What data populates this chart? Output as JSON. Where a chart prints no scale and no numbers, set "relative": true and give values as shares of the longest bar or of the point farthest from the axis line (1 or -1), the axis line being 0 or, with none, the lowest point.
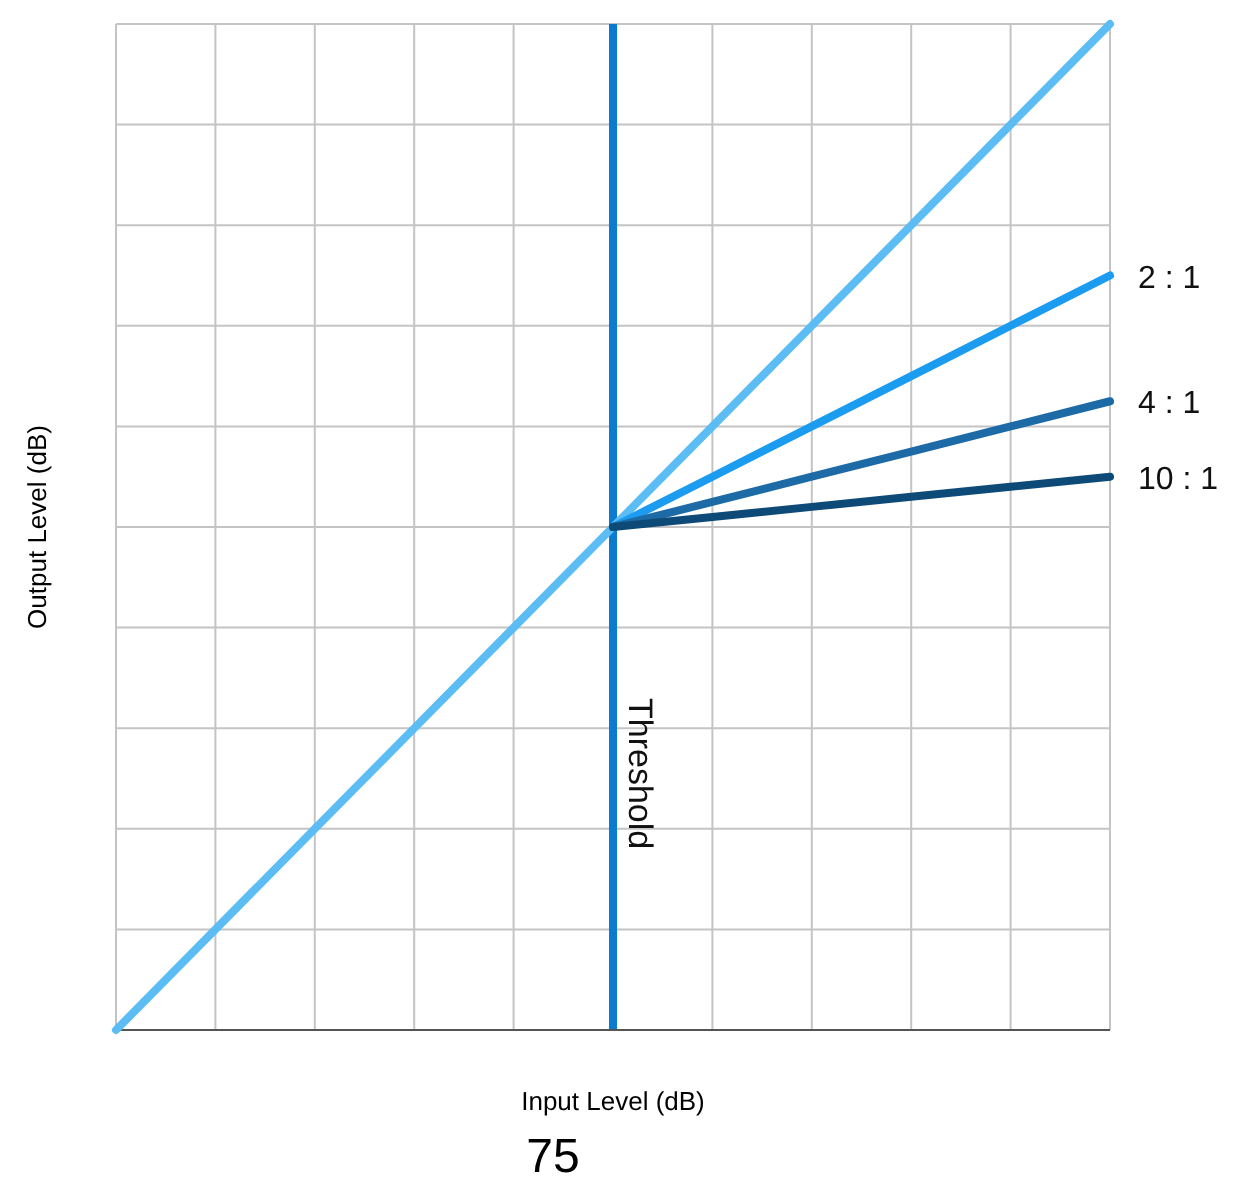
{
  "chart_data": {
    "type": "line",
    "relative": true,
    "xlabel": "Input Level (dB)",
    "ylabel": "Output Level (dB)",
    "categories": [
      null,
      null,
      null,
      null,
      null,
      null,
      null,
      null,
      null,
      null,
      null
    ],
    "series": [
      {
        "color": "#5cbcf4",
        "values": [
          0,
          0.1,
          0.2,
          0.3,
          0.4,
          0.5,
          0.6,
          0.7,
          0.8,
          0.9,
          1
        ]
      },
      {
        "name": "2 : 1",
        "color": "#1b9cf0",
        "values": [
          null,
          null,
          null,
          null,
          null,
          0.5,
          0.55,
          0.6,
          0.65,
          0.7,
          0.75
        ]
      },
      {
        "name": "4 : 1",
        "color": "#1c6aa6",
        "values": [
          null,
          null,
          null,
          null,
          null,
          0.5,
          0.525,
          0.55,
          0.575,
          0.6,
          0.625
        ]
      },
      {
        "name": "10 : 1",
        "color": "#0e4a78",
        "values": [
          null,
          null,
          null,
          null,
          null,
          0.5,
          0.51,
          0.52,
          0.53,
          0.54,
          0.55
        ]
      }
    ],
    "grid": true,
    "legend": false,
    "annotations": [
      "Threshold",
      "75"
    ]
  }
}
